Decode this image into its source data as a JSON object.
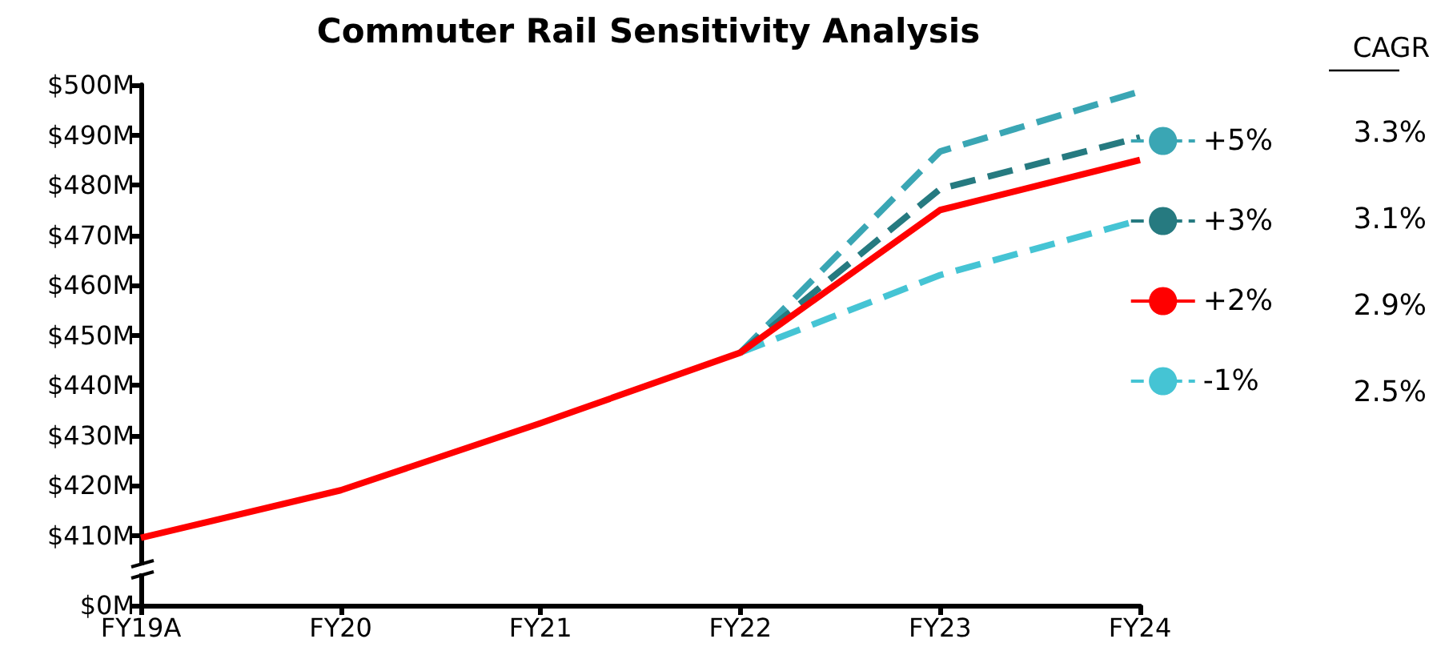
{
  "chart_data": {
    "type": "line",
    "title": "Commuter Rail Sensitivity Analysis",
    "categories": [
      "FY19A",
      "FY20",
      "FY21",
      "FY22",
      "FY23",
      "FY24"
    ],
    "series": [
      {
        "name": "+5%",
        "color": "#3aa6b4",
        "line_style": "dashed",
        "values": [
          null,
          null,
          null,
          446.5,
          486.7,
          498.7
        ]
      },
      {
        "name": "+3%",
        "color": "#267a80",
        "line_style": "dashed",
        "values": [
          null,
          null,
          null,
          446.5,
          479.2,
          489.5
        ]
      },
      {
        "name": "+2%",
        "color": "#ff0000",
        "line_style": "solid",
        "values": [
          409.5,
          419,
          432.4,
          446.5,
          475,
          485
        ]
      },
      {
        "name": "-1%",
        "color": "#45c4d4",
        "line_style": "dashed",
        "values": [
          null,
          null,
          null,
          446.5,
          462,
          473
        ]
      }
    ],
    "ylim": [
      396,
      500
    ],
    "yticks": [
      {
        "value": 396,
        "label": "$0M"
      },
      {
        "value": 410,
        "label": "$410M"
      },
      {
        "value": 420,
        "label": "$420M"
      },
      {
        "value": 430,
        "label": "$430M"
      },
      {
        "value": 440,
        "label": "$440M"
      },
      {
        "value": 450,
        "label": "$450M"
      },
      {
        "value": 460,
        "label": "$460M"
      },
      {
        "value": 470,
        "label": "$470M"
      },
      {
        "value": 480,
        "label": "$480M"
      },
      {
        "value": 490,
        "label": "$490M"
      },
      {
        "value": 500,
        "label": "$500M"
      }
    ],
    "legend": "right",
    "legend_title": "CAGR",
    "annotations": [
      "3.3%",
      "3.1%",
      "2.9%",
      "2.5%"
    ],
    "grid": false,
    "marker": "none"
  }
}
